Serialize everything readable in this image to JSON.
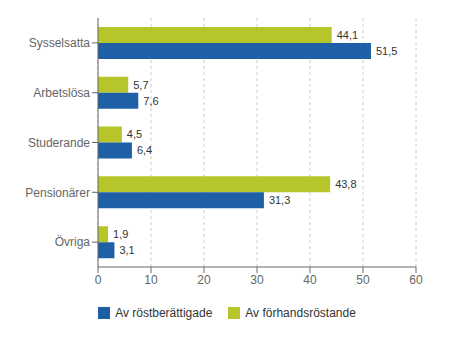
{
  "chart_data": {
    "type": "bar",
    "orientation": "horizontal",
    "categories": [
      "Sysselsatta",
      "Arbetslösa",
      "Studerande",
      "Pensionärer",
      "Övriga"
    ],
    "series": [
      {
        "name": "Av röstberättigade",
        "color": "#1f5fa6",
        "values": [
          51.5,
          7.6,
          6.4,
          31.3,
          3.1
        ],
        "value_labels": [
          "51,5",
          "7,6",
          "6,4",
          "31,3",
          "3,1"
        ]
      },
      {
        "name": "Av förhandsröstande",
        "color": "#b5c52a",
        "values": [
          44.1,
          5.7,
          4.5,
          43.8,
          1.9
        ],
        "value_labels": [
          "44,1",
          "5,7",
          "4,5",
          "43,8",
          "1,9"
        ]
      }
    ],
    "xlim": [
      0,
      60
    ],
    "xticks": [
      0,
      10,
      20,
      30,
      40,
      50,
      60
    ],
    "grid": true,
    "data_labels": true,
    "legend": "bottom"
  }
}
